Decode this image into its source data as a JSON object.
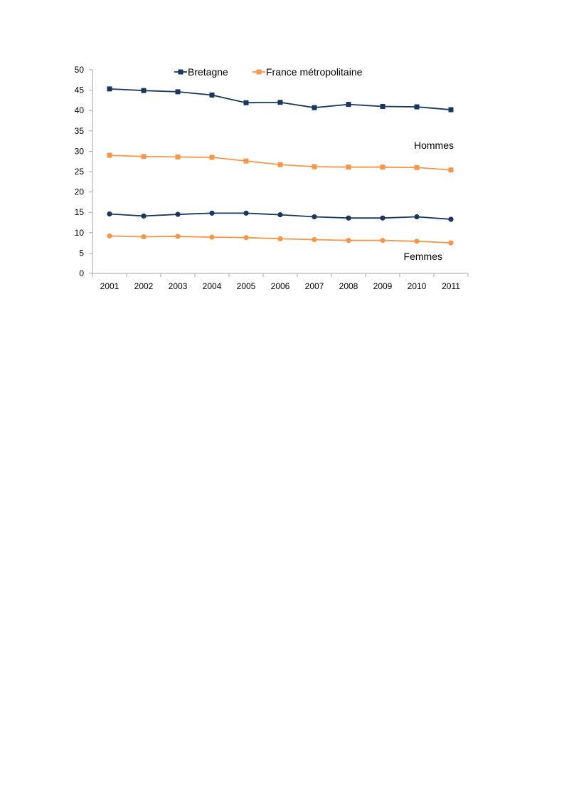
{
  "chart_data": {
    "type": "line",
    "title": "",
    "xlabel": "",
    "ylabel": "",
    "ylim": [
      0,
      50
    ],
    "yticks": [
      0,
      5,
      10,
      15,
      20,
      25,
      30,
      35,
      40,
      45,
      50
    ],
    "grid": false,
    "legend_position": "top",
    "categories": [
      "2001",
      "2002",
      "2003",
      "2004",
      "2005",
      "2006",
      "2007",
      "2008",
      "2009",
      "2010",
      "2011"
    ],
    "legend": [
      {
        "name": "Bretagne",
        "color": "#17375e",
        "marker": "square"
      },
      {
        "name": "France métropolitaine",
        "color": "#f79646",
        "marker": "square"
      }
    ],
    "series": [
      {
        "name": "Bretagne",
        "group": "Hommes",
        "color": "#17375e",
        "marker": "square",
        "values": [
          45.3,
          44.9,
          44.6,
          43.8,
          41.9,
          42.0,
          40.7,
          41.5,
          41.0,
          40.9,
          40.2
        ]
      },
      {
        "name": "France métropolitaine",
        "group": "Hommes",
        "color": "#f79646",
        "marker": "square",
        "values": [
          29.0,
          28.7,
          28.6,
          28.5,
          27.6,
          26.7,
          26.2,
          26.1,
          26.1,
          26.0,
          25.4
        ]
      },
      {
        "name": "Bretagne",
        "group": "Femmes",
        "color": "#17375e",
        "marker": "circle",
        "values": [
          14.6,
          14.1,
          14.5,
          14.8,
          14.8,
          14.4,
          13.9,
          13.6,
          13.6,
          13.9,
          13.3
        ]
      },
      {
        "name": "France métropolitaine",
        "group": "Femmes",
        "color": "#f79646",
        "marker": "circle",
        "values": [
          9.2,
          9.0,
          9.1,
          8.9,
          8.8,
          8.5,
          8.3,
          8.1,
          8.1,
          7.9,
          7.5
        ]
      }
    ],
    "annotations": [
      {
        "text": "Hommes",
        "near_series": 1
      },
      {
        "text": "Femmes",
        "near_series": 3
      }
    ]
  }
}
